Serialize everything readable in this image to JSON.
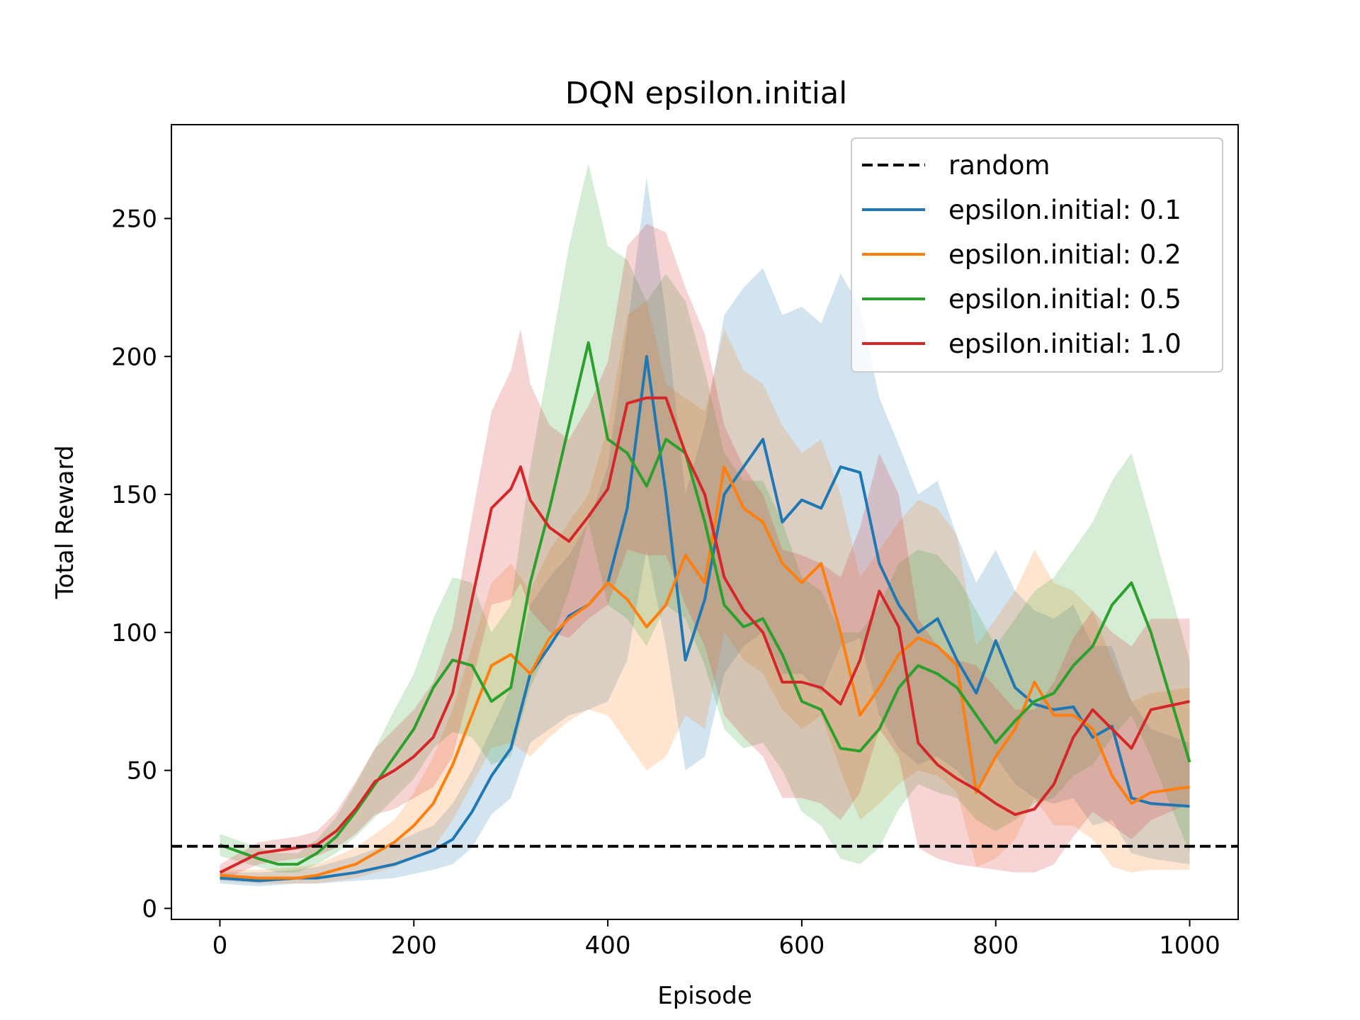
{
  "chart_data": {
    "type": "line",
    "title": "DQN epsilon.initial",
    "xlabel": "Episode",
    "ylabel": "Total Reward",
    "xlim": [
      -50,
      1050
    ],
    "ylim": [
      -4,
      284
    ],
    "xticks": [
      0,
      200,
      400,
      600,
      800,
      1000
    ],
    "yticks": [
      0,
      50,
      100,
      150,
      200,
      250
    ],
    "grid": false,
    "legend_position": "top-right",
    "baseline": {
      "name": "random",
      "value": 22.5,
      "color": "#000000",
      "style": "dashed"
    },
    "series": [
      {
        "name": "epsilon.initial: 0.1",
        "color": "#1f77b4",
        "x": [
          0,
          40,
          80,
          100,
          140,
          180,
          220,
          240,
          260,
          280,
          300,
          320,
          340,
          360,
          380,
          400,
          420,
          440,
          460,
          480,
          500,
          520,
          540,
          560,
          580,
          600,
          620,
          640,
          660,
          680,
          700,
          720,
          740,
          760,
          780,
          800,
          820,
          840,
          860,
          880,
          900,
          920,
          940,
          960,
          1000
        ],
        "y": [
          11,
          10,
          11,
          11,
          13,
          16,
          21,
          25,
          35,
          48,
          58,
          85,
          95,
          106,
          110,
          118,
          145,
          200,
          150,
          90,
          112,
          150,
          160,
          170,
          140,
          148,
          145,
          160,
          158,
          125,
          110,
          100,
          105,
          90,
          78,
          97,
          80,
          74,
          72,
          73,
          62,
          66,
          40,
          38,
          37
        ],
        "upper": [
          13,
          13,
          14,
          15,
          19,
          24,
          30,
          38,
          50,
          65,
          80,
          110,
          120,
          128,
          140,
          160,
          210,
          265,
          215,
          150,
          175,
          215,
          225,
          232,
          215,
          218,
          212,
          230,
          218,
          185,
          168,
          150,
          155,
          135,
          118,
          130,
          115,
          108,
          105,
          110,
          95,
          95,
          75,
          65,
          60
        ],
        "lower": [
          9,
          8,
          9,
          9,
          10,
          11,
          14,
          16,
          22,
          34,
          40,
          60,
          65,
          70,
          72,
          75,
          90,
          130,
          95,
          50,
          55,
          85,
          95,
          100,
          85,
          85,
          78,
          95,
          98,
          70,
          58,
          52,
          55,
          50,
          42,
          55,
          45,
          40,
          38,
          40,
          30,
          32,
          20,
          18,
          16
        ]
      },
      {
        "name": "epsilon.initial: 0.2",
        "color": "#ff7f0e",
        "x": [
          0,
          40,
          80,
          100,
          140,
          180,
          200,
          220,
          240,
          260,
          280,
          300,
          320,
          340,
          360,
          380,
          400,
          420,
          440,
          460,
          480,
          500,
          520,
          540,
          560,
          580,
          600,
          620,
          640,
          660,
          680,
          700,
          720,
          740,
          760,
          780,
          800,
          820,
          840,
          860,
          880,
          900,
          920,
          940,
          960,
          1000
        ],
        "y": [
          12,
          11,
          11,
          12,
          16,
          24,
          30,
          38,
          52,
          70,
          88,
          92,
          85,
          98,
          105,
          110,
          118,
          112,
          102,
          110,
          128,
          118,
          160,
          145,
          140,
          125,
          118,
          125,
          100,
          70,
          80,
          92,
          98,
          95,
          88,
          42,
          55,
          65,
          82,
          70,
          70,
          65,
          48,
          38,
          42,
          44
        ],
        "upper": [
          14,
          14,
          15,
          16,
          22,
          32,
          42,
          55,
          72,
          95,
          118,
          125,
          115,
          130,
          140,
          150,
          175,
          215,
          220,
          190,
          185,
          180,
          210,
          195,
          190,
          175,
          165,
          170,
          150,
          120,
          130,
          140,
          148,
          145,
          135,
          95,
          105,
          115,
          130,
          118,
          115,
          108,
          90,
          75,
          78,
          80
        ],
        "lower": [
          10,
          9,
          9,
          9,
          11,
          15,
          18,
          22,
          32,
          45,
          58,
          60,
          55,
          62,
          68,
          72,
          70,
          60,
          50,
          55,
          70,
          65,
          100,
          90,
          85,
          72,
          65,
          70,
          50,
          32,
          38,
          45,
          50,
          48,
          42,
          15,
          18,
          25,
          40,
          30,
          30,
          25,
          15,
          13,
          14,
          14
        ]
      },
      {
        "name": "epsilon.initial: 0.5",
        "color": "#2ca02c",
        "x": [
          0,
          40,
          60,
          80,
          100,
          120,
          140,
          160,
          180,
          200,
          220,
          240,
          260,
          280,
          300,
          320,
          340,
          360,
          380,
          400,
          420,
          440,
          460,
          480,
          500,
          520,
          540,
          560,
          580,
          600,
          620,
          640,
          660,
          680,
          700,
          720,
          740,
          760,
          780,
          800,
          820,
          840,
          860,
          880,
          900,
          920,
          940,
          960,
          1000
        ],
        "y": [
          23,
          18,
          16,
          16,
          20,
          26,
          35,
          45,
          55,
          65,
          80,
          90,
          88,
          75,
          80,
          118,
          145,
          175,
          205,
          170,
          165,
          153,
          170,
          165,
          140,
          110,
          102,
          105,
          92,
          75,
          72,
          58,
          57,
          65,
          80,
          88,
          85,
          80,
          70,
          60,
          68,
          75,
          78,
          88,
          95,
          110,
          118,
          100,
          53
        ],
        "upper": [
          27,
          22,
          20,
          20,
          25,
          33,
          45,
          58,
          72,
          85,
          105,
          120,
          118,
          100,
          110,
          160,
          200,
          240,
          270,
          240,
          235,
          220,
          230,
          220,
          195,
          165,
          155,
          155,
          140,
          120,
          115,
          100,
          100,
          110,
          125,
          130,
          128,
          120,
          108,
          95,
          105,
          115,
          120,
          130,
          140,
          155,
          165,
          140,
          90
        ],
        "lower": [
          19,
          15,
          13,
          13,
          16,
          20,
          26,
          33,
          40,
          47,
          58,
          64,
          62,
          52,
          55,
          80,
          95,
          115,
          140,
          110,
          105,
          95,
          110,
          105,
          88,
          65,
          58,
          60,
          50,
          35,
          30,
          18,
          16,
          22,
          36,
          45,
          42,
          40,
          32,
          28,
          32,
          38,
          40,
          48,
          52,
          62,
          70,
          55,
          20
        ]
      },
      {
        "name": "epsilon.initial: 1.0",
        "color": "#d62728",
        "x": [
          0,
          40,
          80,
          100,
          120,
          140,
          160,
          180,
          200,
          220,
          240,
          260,
          280,
          300,
          310,
          320,
          340,
          360,
          380,
          400,
          420,
          440,
          460,
          480,
          500,
          520,
          540,
          560,
          580,
          600,
          620,
          640,
          660,
          680,
          700,
          720,
          740,
          760,
          780,
          800,
          820,
          840,
          860,
          880,
          900,
          920,
          940,
          960,
          1000
        ],
        "y": [
          13,
          20,
          22,
          23,
          28,
          36,
          46,
          50,
          55,
          62,
          78,
          112,
          145,
          152,
          160,
          148,
          138,
          133,
          142,
          152,
          183,
          185,
          185,
          165,
          150,
          120,
          108,
          100,
          82,
          82,
          80,
          74,
          90,
          115,
          102,
          60,
          52,
          47,
          43,
          38,
          34,
          36,
          45,
          62,
          72,
          65,
          58,
          72,
          75
        ],
        "upper": [
          16,
          24,
          26,
          28,
          35,
          46,
          58,
          65,
          72,
          82,
          102,
          142,
          180,
          195,
          210,
          190,
          175,
          170,
          182,
          198,
          240,
          248,
          245,
          225,
          208,
          175,
          160,
          150,
          130,
          128,
          125,
          120,
          138,
          165,
          150,
          105,
          95,
          90,
          88,
          80,
          72,
          72,
          82,
          98,
          108,
          100,
          95,
          105,
          105
        ],
        "lower": [
          10,
          16,
          18,
          19,
          22,
          27,
          34,
          36,
          40,
          44,
          55,
          82,
          110,
          112,
          118,
          108,
          100,
          98,
          105,
          110,
          130,
          128,
          128,
          110,
          95,
          70,
          62,
          55,
          40,
          40,
          38,
          32,
          42,
          65,
          55,
          22,
          18,
          16,
          15,
          14,
          13,
          13,
          16,
          26,
          35,
          30,
          25,
          32,
          38
        ]
      }
    ]
  }
}
